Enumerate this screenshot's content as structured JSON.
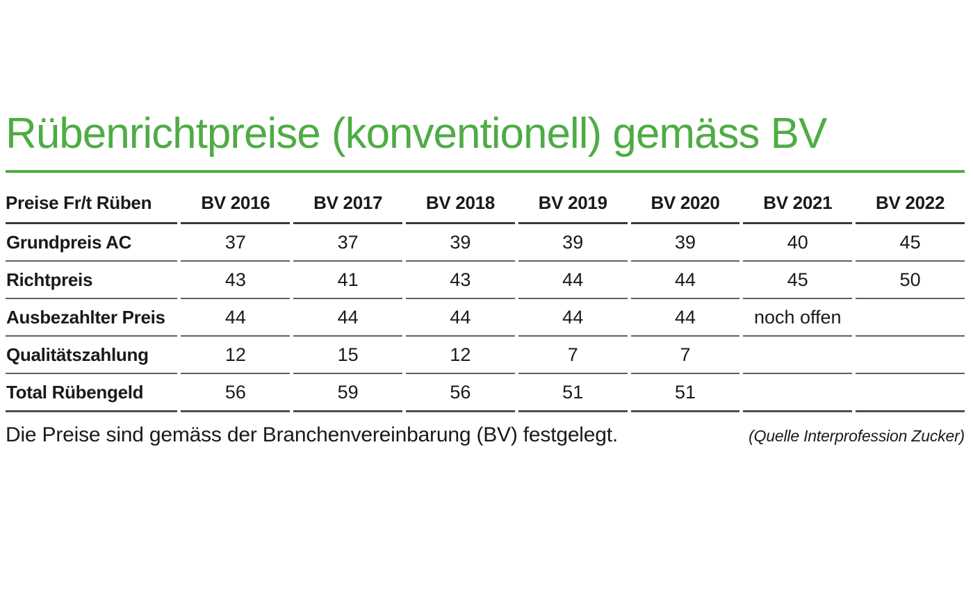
{
  "title": "Rübenrichtpreise (konventionell) gemäss BV",
  "colors": {
    "accent_green": "#4eac44",
    "text": "#1a1a1a",
    "row_line_gray": "#5f5f5f",
    "header_line_dark": "#383838"
  },
  "table": {
    "header": [
      "Preise Fr/t Rüben",
      "BV 2016",
      "BV 2017",
      "BV 2018",
      "BV 2019",
      "BV 2020",
      "BV 2021",
      "BV 2022"
    ],
    "rows": [
      {
        "label": "Grundpreis AC",
        "values": [
          "37",
          "37",
          "39",
          "39",
          "39",
          "40",
          "45"
        ]
      },
      {
        "label": "Richtpreis",
        "values": [
          "43",
          "41",
          "43",
          "44",
          "44",
          "45",
          "50"
        ]
      },
      {
        "label": "Ausbezahlter Preis",
        "values": [
          "44",
          "44",
          "44",
          "44",
          "44",
          "noch offen",
          ""
        ]
      },
      {
        "label": "Qualitätszahlung",
        "values": [
          "12",
          "15",
          "12",
          "7",
          "7",
          "",
          ""
        ]
      },
      {
        "label": "Total Rübengeld",
        "values": [
          "56",
          "59",
          "56",
          "51",
          "51",
          "",
          ""
        ]
      }
    ]
  },
  "footer": {
    "note": "Die Preise sind gemäss der Branchenvereinbarung (BV) festgelegt.",
    "source": "(Quelle Interprofession Zucker)"
  }
}
